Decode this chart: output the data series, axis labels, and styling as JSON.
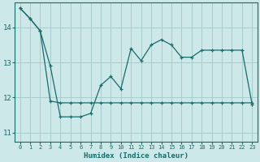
{
  "xlabel": "Humidex (Indice chaleur)",
  "bg_color": "#cce8e8",
  "grid_color": "#aacccc",
  "line_color": "#1a6b6b",
  "xlim": [
    -0.5,
    23.5
  ],
  "ylim": [
    10.75,
    14.7
  ],
  "yticks": [
    11,
    12,
    13,
    14
  ],
  "xticks": [
    0,
    1,
    2,
    3,
    4,
    5,
    6,
    7,
    8,
    9,
    10,
    11,
    12,
    13,
    14,
    15,
    16,
    17,
    18,
    19,
    20,
    21,
    22,
    23
  ],
  "line1_x": [
    0,
    1,
    2,
    3,
    4,
    5,
    6,
    7,
    8,
    9,
    10,
    11,
    12,
    13,
    14,
    15,
    16,
    17,
    18,
    19,
    20,
    21,
    22,
    23
  ],
  "line1_y": [
    14.55,
    14.25,
    13.9,
    12.9,
    11.45,
    11.45,
    11.45,
    11.55,
    12.35,
    12.6,
    12.25,
    13.4,
    13.05,
    13.5,
    13.65,
    13.5,
    13.15,
    13.15,
    13.35,
    13.35,
    13.35,
    13.35,
    13.35,
    11.8
  ],
  "line2_x": [
    0,
    1,
    2,
    3,
    4,
    5,
    6,
    7,
    8,
    9,
    10,
    11,
    12,
    13,
    14,
    15,
    16,
    17,
    18,
    19,
    20,
    21,
    22,
    23
  ],
  "line2_y": [
    14.55,
    14.25,
    13.9,
    11.9,
    11.85,
    11.85,
    11.85,
    11.85,
    11.85,
    11.85,
    11.85,
    11.85,
    11.85,
    11.85,
    11.85,
    11.85,
    11.85,
    11.85,
    11.85,
    11.85,
    11.85,
    11.85,
    11.85,
    11.85
  ],
  "ytick_fontsize": 6.5,
  "xtick_fontsize": 5.0,
  "xlabel_fontsize": 6.5
}
